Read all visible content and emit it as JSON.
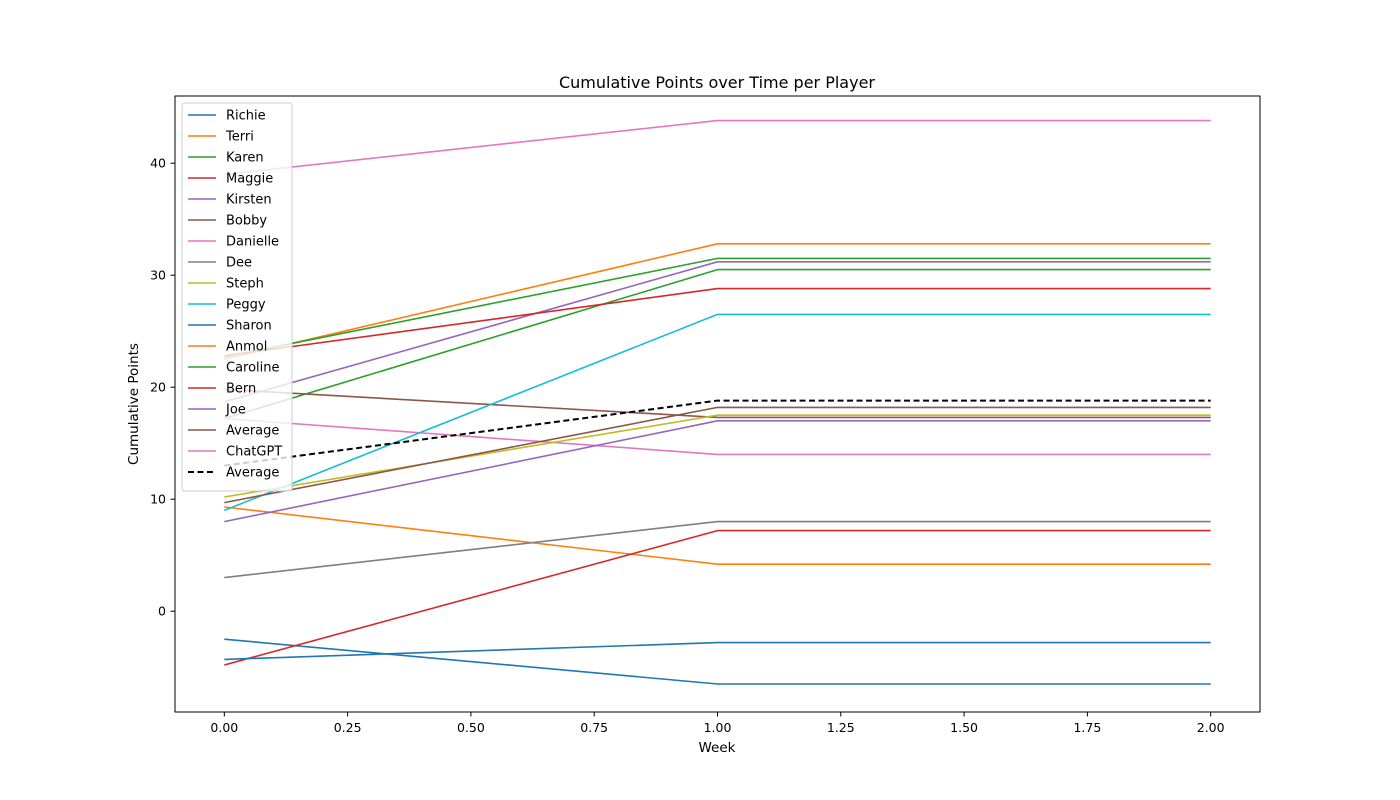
{
  "chart_data": {
    "type": "line",
    "title": "Cumulative Points over Time per Player",
    "xlabel": "Week",
    "ylabel": "Cumulative Points",
    "xlim": [
      -0.1,
      2.1
    ],
    "ylim": [
      -9,
      46
    ],
    "xticks": [
      0.0,
      0.25,
      0.5,
      0.75,
      1.0,
      1.25,
      1.5,
      1.75,
      2.0
    ],
    "xtick_labels": [
      "0.00",
      "0.25",
      "0.50",
      "0.75",
      "1.00",
      "1.25",
      "1.50",
      "1.75",
      "2.00"
    ],
    "yticks": [
      0,
      10,
      20,
      30,
      40
    ],
    "ytick_labels": [
      "0",
      "10",
      "20",
      "30",
      "40"
    ],
    "grid": false,
    "legend_position": "top-left",
    "x": [
      0,
      1,
      2
    ],
    "series": [
      {
        "name": "Richie",
        "color": "#1f77b4",
        "dashed": false,
        "values": [
          -2.5,
          -6.5,
          -6.5
        ]
      },
      {
        "name": "Terri",
        "color": "#ff7f0e",
        "dashed": false,
        "values": [
          9.3,
          4.2,
          4.2
        ]
      },
      {
        "name": "Karen",
        "color": "#2ca02c",
        "dashed": false,
        "values": [
          17.2,
          30.5,
          30.5
        ]
      },
      {
        "name": "Maggie",
        "color": "#d62728",
        "dashed": false,
        "values": [
          -4.8,
          7.2,
          7.2
        ]
      },
      {
        "name": "Kirsten",
        "color": "#9467bd",
        "dashed": false,
        "values": [
          18.7,
          31.2,
          31.2
        ]
      },
      {
        "name": "Bobby",
        "color": "#8c564b",
        "dashed": false,
        "values": [
          19.8,
          17.3,
          17.3
        ]
      },
      {
        "name": "Danielle",
        "color": "#e377c2",
        "dashed": false,
        "values": [
          17.2,
          14.0,
          14.0
        ]
      },
      {
        "name": "Dee",
        "color": "#7f7f7f",
        "dashed": false,
        "values": [
          3.0,
          8.0,
          8.0
        ]
      },
      {
        "name": "Steph",
        "color": "#bcbd22",
        "dashed": false,
        "values": [
          10.2,
          17.5,
          17.5
        ]
      },
      {
        "name": "Peggy",
        "color": "#17becf",
        "dashed": false,
        "values": [
          9.0,
          26.5,
          26.5
        ]
      },
      {
        "name": "Sharon",
        "color": "#1f77b4",
        "dashed": false,
        "values": [
          -4.3,
          -2.8,
          -2.8
        ]
      },
      {
        "name": "Anmol",
        "color": "#ff7f0e",
        "dashed": false,
        "values": [
          22.5,
          32.8,
          32.8
        ]
      },
      {
        "name": "Caroline",
        "color": "#2ca02c",
        "dashed": false,
        "values": [
          22.7,
          31.5,
          31.5
        ]
      },
      {
        "name": "Bern",
        "color": "#d62728",
        "dashed": false,
        "values": [
          22.8,
          28.8,
          28.8
        ]
      },
      {
        "name": "Joe",
        "color": "#9467bd",
        "dashed": false,
        "values": [
          8.0,
          17.0,
          17.0
        ]
      },
      {
        "name": "Average",
        "color": "#8c564b",
        "dashed": false,
        "values": [
          9.7,
          18.2,
          18.2
        ]
      },
      {
        "name": "ChatGPT",
        "color": "#e377c2",
        "dashed": false,
        "values": [
          39.0,
          43.8,
          43.8
        ]
      },
      {
        "name": "Average",
        "color": "#000000",
        "dashed": true,
        "values": [
          13.0,
          18.8,
          18.8
        ]
      }
    ]
  }
}
